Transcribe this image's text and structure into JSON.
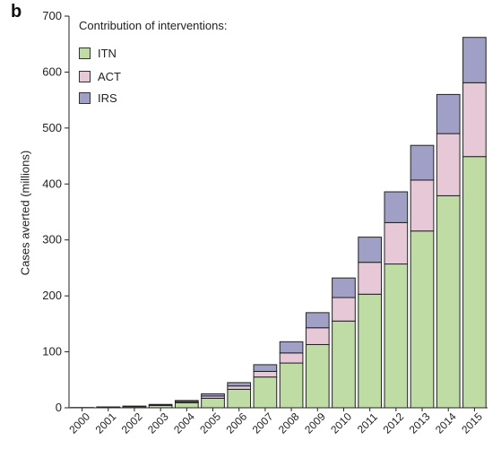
{
  "panel_label": "b",
  "colors": {
    "ITN": "#bfdca5",
    "ACT": "#e6c8d7",
    "IRS": "#a0a0c6"
  },
  "chart_data": {
    "type": "bar",
    "stacked": true,
    "categories": [
      "2000",
      "2001",
      "2002",
      "2003",
      "2004",
      "2005",
      "2006",
      "2007",
      "2008",
      "2009",
      "2010",
      "2011",
      "2012",
      "2013",
      "2014",
      "2015"
    ],
    "series": [
      {
        "name": "ITN",
        "values": [
          0.5,
          1,
          2,
          4,
          9,
          17,
          33,
          55,
          80,
          113,
          155,
          203,
          257,
          316,
          379,
          449
        ]
      },
      {
        "name": "ACT",
        "values": [
          0,
          0.3,
          0.5,
          1,
          2,
          4,
          6,
          10,
          18,
          30,
          42,
          57,
          74,
          91,
          111,
          132
        ]
      },
      {
        "name": "IRS",
        "values": [
          0,
          0.2,
          0.5,
          1,
          2,
          4,
          6,
          12,
          20,
          27,
          35,
          45,
          55,
          62,
          70,
          81
        ]
      }
    ],
    "ylabel": "Cases averted (millions)",
    "xlabel": "",
    "ylim": [
      0,
      700
    ],
    "yticks": [
      0,
      100,
      200,
      300,
      400,
      500,
      600,
      700
    ],
    "legend_title": "Contribution of interventions:",
    "legend_position": "top-left",
    "grid": false
  }
}
